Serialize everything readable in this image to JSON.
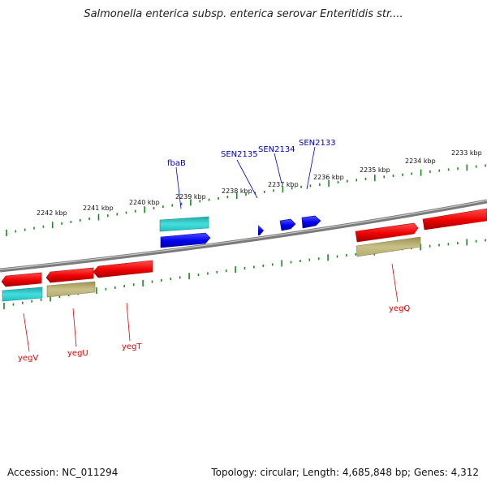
{
  "title": "Salmonella enterica subsp. enterica serovar Enteritidis str....",
  "footer": {
    "accession": "Accession: NC_011294",
    "summary": "Topology: circular; Length: 4,685,848 bp; Genes: 4,312"
  },
  "scale_labels": [
    "2233 kbp",
    "2234 kbp",
    "2235 kbp",
    "2236 kbp",
    "2237 kbp",
    "2238 kbp",
    "2239 kbp",
    "2240 kbp",
    "2241 kbp",
    "2242 kbp"
  ],
  "gene_labels": {
    "top": [
      "fbaB",
      "SEN2135",
      "SEN2134",
      "SEN2133"
    ],
    "bottom": [
      "yegV",
      "yegU",
      "yegT",
      "yegQ"
    ]
  },
  "colors": {
    "red": "#ee1111",
    "cyan": "#22cccc",
    "olive": "#b8b070",
    "blue": "#1111ee",
    "tick": "#1a8a1a",
    "backbone": "#888888"
  }
}
